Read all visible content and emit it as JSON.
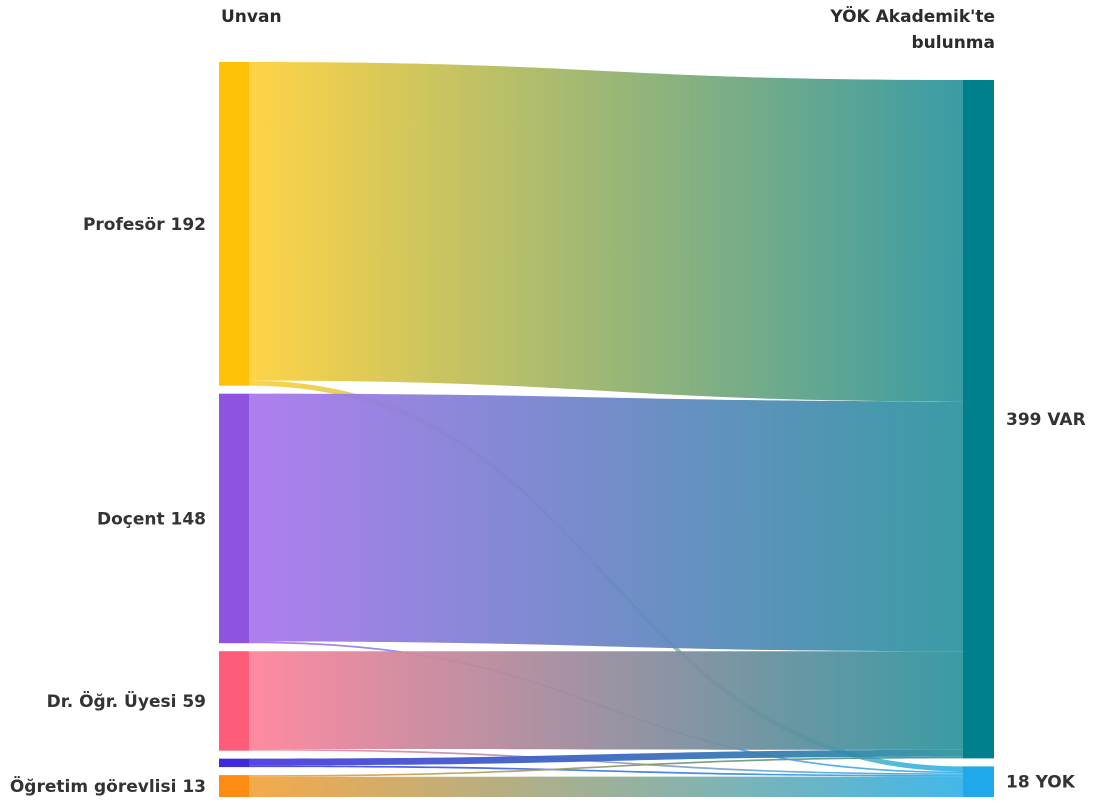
{
  "chart_data": {
    "type": "sankey",
    "left_header": "Unvan",
    "right_header": [
      "YÖK Akademik'te",
      "bulunma"
    ],
    "left_nodes": [
      {
        "name": "Profesör",
        "value": 192,
        "color": "#FFC107",
        "flow_color": "#FFD13D"
      },
      {
        "name": "Doçent",
        "value": 148,
        "color": "#8E54E0",
        "flow_color": "#AA78EE"
      },
      {
        "name": "",
        "value": 59,
        "display": "Dr. Öğr. Üyesi 59",
        "color": "#FF5C7A",
        "flow_color": "#FF849C"
      },
      {
        "name": "",
        "value": 5,
        "display": "",
        "color": "#3F2BDB",
        "flow_color": "#4A3DE2"
      },
      {
        "name": "Öğretim görevlisi",
        "value": 13,
        "color": "#FF8C12",
        "flow_color": "#F5A540"
      }
    ],
    "right_nodes": [
      {
        "name": "VAR",
        "value": 399,
        "color": "#007F8C",
        "flow_color": "#2F96A0"
      },
      {
        "name": "YOK",
        "value": 18,
        "color": "#1FA9EB",
        "flow_color": "#38B4E8"
      }
    ],
    "links": [
      {
        "source": 0,
        "target": 0,
        "value": 189
      },
      {
        "source": 0,
        "target": 1,
        "value": 3
      },
      {
        "source": 1,
        "target": 0,
        "value": 147
      },
      {
        "source": 1,
        "target": 1,
        "value": 1
      },
      {
        "source": 2,
        "target": 0,
        "value": 58
      },
      {
        "source": 2,
        "target": 1,
        "value": 1
      },
      {
        "source": 3,
        "target": 0,
        "value": 4
      },
      {
        "source": 3,
        "target": 1,
        "value": 1
      },
      {
        "source": 4,
        "target": 0,
        "value": 1
      },
      {
        "source": 4,
        "target": 1,
        "value": 12
      }
    ]
  }
}
